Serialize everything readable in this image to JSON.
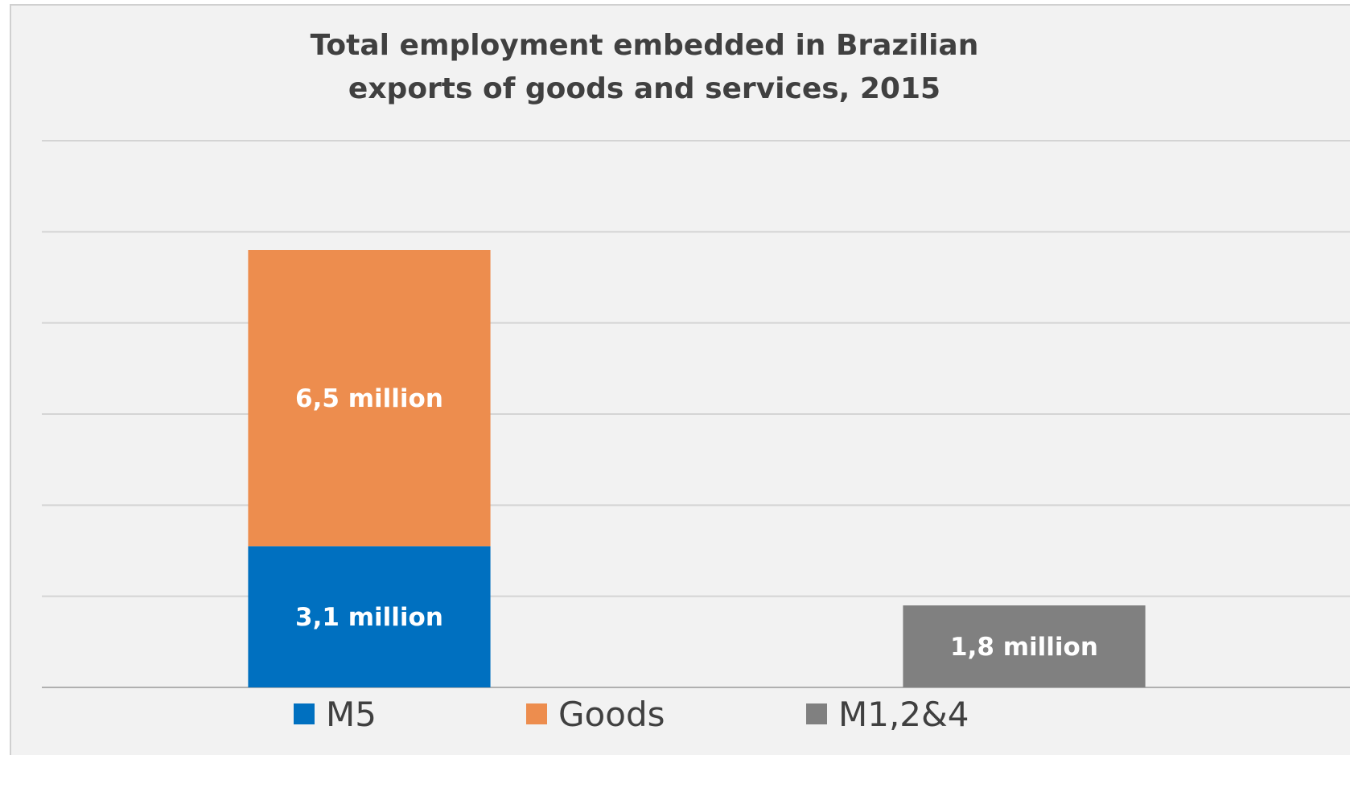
{
  "chart_data": {
    "type": "bar",
    "stacked": true,
    "title": "Total employment embedded in Brazilian exports of goods and services, 2015",
    "title_lines": [
      "Total employment embedded in Brazilian",
      "exports of goods and services, 2015"
    ],
    "xlabel": "",
    "ylabel": "",
    "ylim": [
      0,
      12
    ],
    "y_gridlines": [
      2,
      4,
      6,
      8,
      10,
      12
    ],
    "grid": true,
    "legend_position": "bottom",
    "categories": [
      "",
      ""
    ],
    "series": [
      {
        "name": "M5",
        "color": "#0070c0",
        "values": [
          3.1,
          null
        ],
        "labels": [
          "3,1  million",
          ""
        ]
      },
      {
        "name": "Goods",
        "color": "#ed8d4e",
        "values": [
          6.5,
          null
        ],
        "labels": [
          "6,5 million",
          ""
        ]
      },
      {
        "name": "M1,2&4",
        "color": "#808080",
        "values": [
          null,
          1.8
        ],
        "labels": [
          "",
          "1,8 million"
        ]
      }
    ]
  }
}
